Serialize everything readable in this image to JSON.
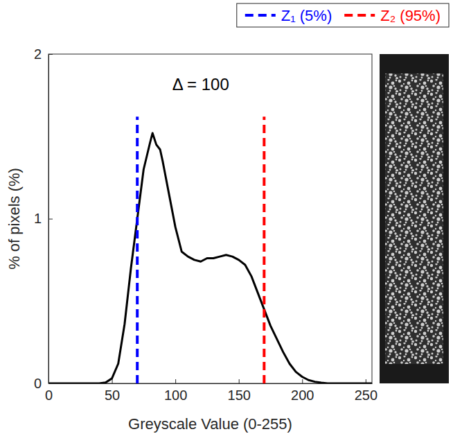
{
  "chart_data": {
    "type": "line",
    "x_label": "Greyscale Value (0-255)",
    "y_label": "% of pixels (%)",
    "color": "#000000",
    "x": [
      0,
      5,
      10,
      15,
      20,
      25,
      30,
      35,
      40,
      45,
      50,
      55,
      60,
      65,
      70,
      75,
      80,
      82,
      85,
      88,
      90,
      95,
      100,
      105,
      110,
      115,
      120,
      125,
      130,
      135,
      140,
      145,
      150,
      155,
      160,
      165,
      170,
      175,
      180,
      185,
      190,
      195,
      200,
      205,
      210,
      215,
      220,
      230,
      240,
      250,
      255
    ],
    "values": [
      0,
      0,
      0,
      0,
      0,
      0,
      0,
      0,
      0,
      0.005,
      0.03,
      0.12,
      0.36,
      0.7,
      1.0,
      1.3,
      1.46,
      1.52,
      1.45,
      1.42,
      1.35,
      1.15,
      0.95,
      0.8,
      0.77,
      0.75,
      0.74,
      0.76,
      0.76,
      0.77,
      0.78,
      0.77,
      0.75,
      0.72,
      0.65,
      0.55,
      0.45,
      0.35,
      0.27,
      0.19,
      0.12,
      0.07,
      0.04,
      0.02,
      0.01,
      0.004,
      0,
      0,
      0,
      0,
      0
    ],
    "xlim": [
      0,
      255
    ],
    "ylim": [
      0,
      2
    ],
    "xticks": [
      0,
      50,
      100,
      150,
      200,
      250
    ],
    "yticks": [
      0,
      1,
      2
    ],
    "markers": [
      {
        "name": "Z₁ (5%)",
        "x": 70,
        "color": "#0000ff",
        "line_style": "dashed"
      },
      {
        "name": "Z₂ (95%)",
        "x": 170,
        "color": "#ff0000",
        "line_style": "dashed"
      }
    ],
    "annotations": [
      {
        "text": "Δ = 100"
      }
    ],
    "legend": "top"
  }
}
